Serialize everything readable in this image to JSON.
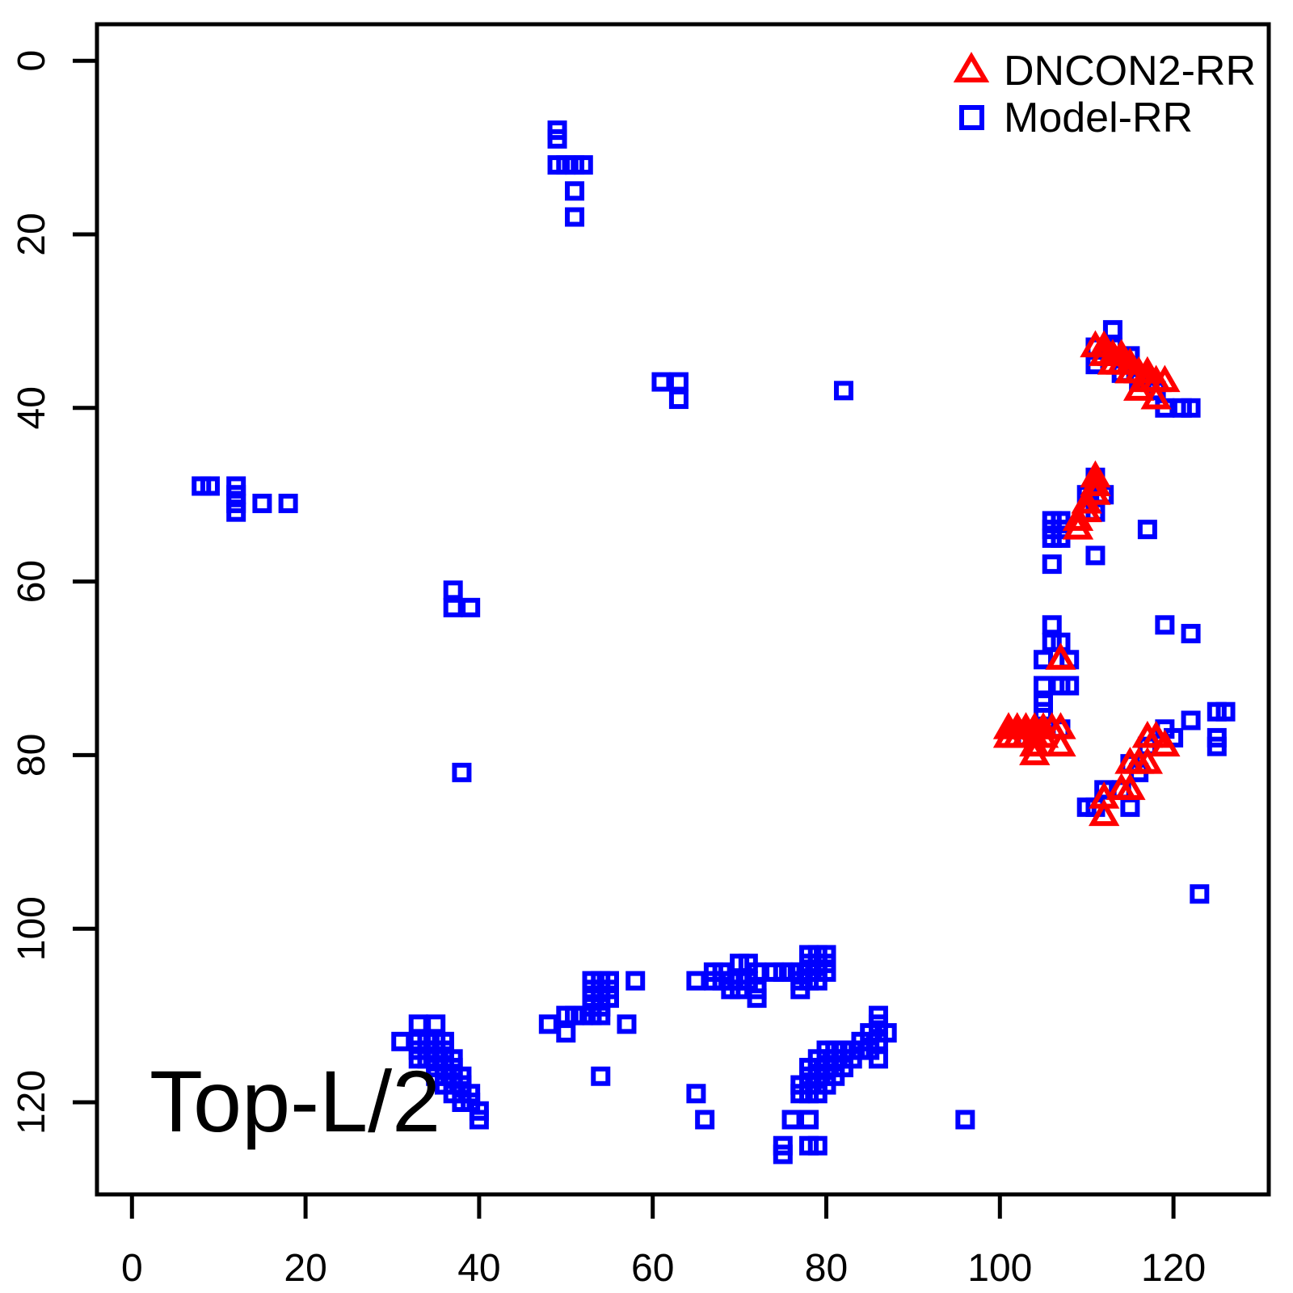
{
  "chart_data": {
    "type": "scatter",
    "title": "",
    "xlabel": "",
    "ylabel": "",
    "annotation": "Top-L/2",
    "x_ticks": [
      0,
      20,
      40,
      60,
      80,
      100,
      120
    ],
    "y_ticks": [
      0,
      20,
      40,
      60,
      80,
      100,
      120
    ],
    "x_axis": {
      "min": -4,
      "max": 131
    },
    "y_axis": {
      "min": -4,
      "max": 131,
      "inverted": true
    },
    "grid": false,
    "legend_position": "top-right",
    "legend": [
      {
        "label": "DNCON2-RR",
        "marker": "triangle",
        "color": "#FF0000"
      },
      {
        "label": "Model-RR",
        "marker": "square",
        "color": "#0000FF"
      }
    ],
    "series": [
      {
        "name": "Model-RR",
        "marker": "square",
        "color": "#0000FF",
        "points": [
          [
            49,
            8
          ],
          [
            49,
            9
          ],
          [
            49,
            12
          ],
          [
            50,
            12
          ],
          [
            51,
            12
          ],
          [
            52,
            12
          ],
          [
            51,
            15
          ],
          [
            51,
            18
          ],
          [
            8,
            49
          ],
          [
            9,
            49
          ],
          [
            12,
            49
          ],
          [
            12,
            50
          ],
          [
            12,
            51
          ],
          [
            12,
            52
          ],
          [
            15,
            51
          ],
          [
            18,
            51
          ],
          [
            61,
            37
          ],
          [
            63,
            37
          ],
          [
            63,
            39
          ],
          [
            82,
            38
          ],
          [
            37,
            61
          ],
          [
            37,
            63
          ],
          [
            39,
            63
          ],
          [
            38,
            82
          ],
          [
            113,
            31
          ],
          [
            111,
            33
          ],
          [
            113,
            33
          ],
          [
            115,
            34
          ],
          [
            111,
            35
          ],
          [
            114,
            36
          ],
          [
            116,
            37
          ],
          [
            117,
            37
          ],
          [
            118,
            38
          ],
          [
            119,
            40
          ],
          [
            121,
            40
          ],
          [
            122,
            40
          ],
          [
            111,
            48
          ],
          [
            110,
            50
          ],
          [
            112,
            50
          ],
          [
            111,
            52
          ],
          [
            106,
            53
          ],
          [
            107,
            53
          ],
          [
            106,
            54
          ],
          [
            107,
            54
          ],
          [
            106,
            55
          ],
          [
            107,
            55
          ],
          [
            117,
            54
          ],
          [
            111,
            57
          ],
          [
            106,
            58
          ],
          [
            106,
            65
          ],
          [
            106,
            67
          ],
          [
            107,
            67
          ],
          [
            105,
            69
          ],
          [
            108,
            69
          ],
          [
            105,
            72
          ],
          [
            107,
            72
          ],
          [
            108,
            72
          ],
          [
            105,
            74
          ],
          [
            105,
            75
          ],
          [
            107,
            77
          ],
          [
            103,
            78
          ],
          [
            119,
            65
          ],
          [
            122,
            66
          ],
          [
            125,
            75
          ],
          [
            126,
            75
          ],
          [
            125,
            78
          ],
          [
            125,
            79
          ],
          [
            122,
            76
          ],
          [
            119,
            77
          ],
          [
            120,
            78
          ],
          [
            117,
            79
          ],
          [
            115,
            81
          ],
          [
            116,
            82
          ],
          [
            112,
            84
          ],
          [
            114,
            84
          ],
          [
            110,
            86
          ],
          [
            111,
            86
          ],
          [
            115,
            86
          ],
          [
            123,
            96
          ],
          [
            96,
            122
          ],
          [
            33,
            111
          ],
          [
            35,
            111
          ],
          [
            31,
            113
          ],
          [
            33,
            113
          ],
          [
            34,
            113
          ],
          [
            35,
            113
          ],
          [
            36,
            113
          ],
          [
            33,
            114
          ],
          [
            34,
            114
          ],
          [
            35,
            114
          ],
          [
            36,
            114
          ],
          [
            33,
            115
          ],
          [
            34,
            115
          ],
          [
            35,
            115
          ],
          [
            36,
            115
          ],
          [
            37,
            115
          ],
          [
            35,
            116
          ],
          [
            36,
            116
          ],
          [
            37,
            116
          ],
          [
            35,
            117
          ],
          [
            36,
            117
          ],
          [
            37,
            117
          ],
          [
            38,
            117
          ],
          [
            36,
            118
          ],
          [
            37,
            118
          ],
          [
            38,
            118
          ],
          [
            37,
            119
          ],
          [
            38,
            119
          ],
          [
            39,
            119
          ],
          [
            38,
            120
          ],
          [
            39,
            120
          ],
          [
            40,
            121
          ],
          [
            40,
            122
          ],
          [
            53,
            106
          ],
          [
            54,
            106
          ],
          [
            55,
            106
          ],
          [
            58,
            106
          ],
          [
            53,
            107
          ],
          [
            54,
            107
          ],
          [
            55,
            107
          ],
          [
            53,
            108
          ],
          [
            54,
            108
          ],
          [
            55,
            108
          ],
          [
            53,
            109
          ],
          [
            54,
            109
          ],
          [
            50,
            110
          ],
          [
            51,
            110
          ],
          [
            52,
            110
          ],
          [
            53,
            110
          ],
          [
            54,
            110
          ],
          [
            48,
            111
          ],
          [
            57,
            111
          ],
          [
            50,
            112
          ],
          [
            54,
            117
          ],
          [
            65,
            106
          ],
          [
            67,
            105
          ],
          [
            68,
            105
          ],
          [
            70,
            104
          ],
          [
            71,
            104
          ],
          [
            67,
            106
          ],
          [
            68,
            106
          ],
          [
            69,
            106
          ],
          [
            70,
            106
          ],
          [
            71,
            106
          ],
          [
            69,
            107
          ],
          [
            70,
            107
          ],
          [
            72,
            105
          ],
          [
            72,
            107
          ],
          [
            72,
            108
          ],
          [
            74,
            105
          ],
          [
            75,
            105
          ],
          [
            76,
            105
          ],
          [
            78,
            103
          ],
          [
            79,
            103
          ],
          [
            80,
            103
          ],
          [
            78,
            104
          ],
          [
            79,
            104
          ],
          [
            80,
            104
          ],
          [
            77,
            105
          ],
          [
            78,
            105
          ],
          [
            79,
            105
          ],
          [
            80,
            105
          ],
          [
            77,
            106
          ],
          [
            78,
            106
          ],
          [
            79,
            106
          ],
          [
            77,
            107
          ],
          [
            86,
            110
          ],
          [
            86,
            111
          ],
          [
            85,
            112
          ],
          [
            87,
            112
          ],
          [
            84,
            113
          ],
          [
            86,
            113
          ],
          [
            80,
            114
          ],
          [
            81,
            114
          ],
          [
            82,
            114
          ],
          [
            83,
            114
          ],
          [
            84,
            114
          ],
          [
            85,
            114
          ],
          [
            79,
            115
          ],
          [
            80,
            115
          ],
          [
            81,
            115
          ],
          [
            82,
            115
          ],
          [
            83,
            115
          ],
          [
            86,
            115
          ],
          [
            78,
            116
          ],
          [
            79,
            116
          ],
          [
            80,
            116
          ],
          [
            81,
            116
          ],
          [
            82,
            116
          ],
          [
            78,
            117
          ],
          [
            79,
            117
          ],
          [
            80,
            117
          ],
          [
            81,
            117
          ],
          [
            77,
            118
          ],
          [
            78,
            118
          ],
          [
            79,
            118
          ],
          [
            80,
            118
          ],
          [
            77,
            119
          ],
          [
            78,
            119
          ],
          [
            79,
            119
          ],
          [
            76,
            122
          ],
          [
            78,
            122
          ],
          [
            78,
            125
          ],
          [
            79,
            125
          ],
          [
            75,
            125
          ],
          [
            75,
            126
          ],
          [
            65,
            119
          ],
          [
            66,
            122
          ]
        ]
      },
      {
        "name": "DNCON2-RR",
        "marker": "triangle",
        "color": "#FF0000",
        "points": [
          [
            111,
            33
          ],
          [
            112,
            33
          ],
          [
            112,
            34
          ],
          [
            113,
            34
          ],
          [
            114,
            34
          ],
          [
            113,
            35
          ],
          [
            114,
            35
          ],
          [
            115,
            35
          ],
          [
            115,
            36
          ],
          [
            116,
            36
          ],
          [
            117,
            36
          ],
          [
            117,
            37
          ],
          [
            118,
            37
          ],
          [
            119,
            37
          ],
          [
            116,
            38
          ],
          [
            118,
            39
          ],
          [
            111,
            48
          ],
          [
            111,
            49
          ],
          [
            111,
            50
          ],
          [
            110,
            51
          ],
          [
            110,
            52
          ],
          [
            109,
            53
          ],
          [
            109,
            54
          ],
          [
            107,
            69
          ],
          [
            101,
            77
          ],
          [
            102,
            77
          ],
          [
            103,
            77
          ],
          [
            104,
            77
          ],
          [
            105,
            77
          ],
          [
            106,
            77
          ],
          [
            107,
            77
          ],
          [
            101,
            78
          ],
          [
            102,
            78
          ],
          [
            103,
            78
          ],
          [
            104,
            78
          ],
          [
            105,
            78
          ],
          [
            104,
            79
          ],
          [
            107,
            79
          ],
          [
            104,
            80
          ],
          [
            117,
            78
          ],
          [
            118,
            78
          ],
          [
            119,
            79
          ],
          [
            115,
            81
          ],
          [
            116,
            81
          ],
          [
            117,
            81
          ],
          [
            114,
            84
          ],
          [
            115,
            84
          ],
          [
            112,
            85
          ],
          [
            112,
            87
          ]
        ]
      }
    ]
  }
}
